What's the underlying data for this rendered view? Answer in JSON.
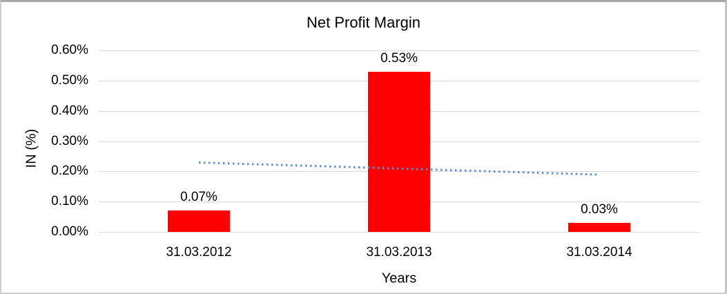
{
  "chart_data": {
    "type": "bar",
    "title": "Net Profit Margin",
    "xlabel": "Years",
    "ylabel": "IN (%)",
    "categories": [
      "31.03.2012",
      "31.03.2013",
      "31.03.2014"
    ],
    "series": [
      {
        "name": "Net Profit Margin",
        "values": [
          0.07,
          0.53,
          0.03
        ],
        "data_labels": [
          "0.07%",
          "0.53%",
          "0.03%"
        ],
        "color": "#FF0000"
      }
    ],
    "ylim": [
      0,
      0.6
    ],
    "ytick_step": 0.1,
    "yticks": [
      {
        "value": 0.0,
        "label": "0.00%"
      },
      {
        "value": 0.1,
        "label": "0.10%"
      },
      {
        "value": 0.2,
        "label": "0.20%"
      },
      {
        "value": 0.3,
        "label": "0.30%"
      },
      {
        "value": 0.4,
        "label": "0.40%"
      },
      {
        "value": 0.5,
        "label": "0.50%"
      },
      {
        "value": 0.6,
        "label": "0.60%"
      }
    ],
    "grid": true,
    "gridline_color": "#D9D9D9",
    "legend_position": "none",
    "trendline": {
      "type": "linear",
      "style": "dotted",
      "color": "#5B8FD0",
      "start_value": 0.23,
      "end_value": 0.19
    },
    "text_color": "#000000",
    "background_color": "#FFFFFF"
  }
}
